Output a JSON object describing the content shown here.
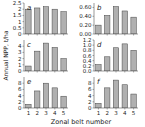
{
  "chart_data": [
    {
      "type": "bar",
      "title": "a",
      "categories": [
        "1",
        "2",
        "3",
        "4",
        "5"
      ],
      "values": [
        2.0,
        2.1,
        2.2,
        2.0,
        1.8
      ],
      "color": "#b0b0b0",
      "ylim": [
        0,
        2.5
      ],
      "yticks": [
        0,
        0.5,
        1,
        1.5,
        2,
        2.5
      ],
      "tick_labels": "y"
    },
    {
      "type": "bar",
      "title": "b",
      "categories": [
        "1",
        "2",
        "3",
        "4",
        "5"
      ],
      "values": [
        0.2,
        0.42,
        0.62,
        0.52,
        0.38
      ],
      "color": "#b0b0b0",
      "ylim": [
        0,
        0.7
      ],
      "yticks": [
        {
          "value": 0.0,
          "label": "0.00"
        },
        {
          "value": 0.2,
          "label": "0.20"
        },
        {
          "value": 0.4,
          "label": "0.40"
        },
        {
          "value": 0.6,
          "label": "0.60"
        }
      ],
      "tick_labels": "y"
    },
    {
      "type": "bar",
      "title": "c",
      "ylabel": "Annual NPP, t/ha",
      "categories": [
        "1",
        "2",
        "3",
        "4",
        "5"
      ],
      "values": [
        0.8,
        3.2,
        4.5,
        3.8,
        2.0
      ],
      "color": "#b0b0b0",
      "ylim": [
        0,
        5
      ],
      "yticks": [
        0,
        1,
        2,
        3,
        4
      ],
      "tick_labels": "y"
    },
    {
      "type": "bar",
      "title": "d",
      "categories": [
        "1",
        "2",
        "3",
        "4",
        "5"
      ],
      "values": [
        0.25,
        0.55,
        0.9,
        1.05,
        0.8
      ],
      "color": "#b0b0b0",
      "ylim": [
        0,
        1.2
      ],
      "yticks": [
        {
          "value": 0.0,
          "label": "0.0"
        },
        0.2,
        0.4,
        0.6,
        0.8,
        {
          "value": 1.0,
          "label": "1.0"
        },
        1.2
      ],
      "tick_labels": "y"
    },
    {
      "type": "bar",
      "title": "e",
      "xlabel": "Zonal belt number",
      "categories": [
        "1",
        "2",
        "3",
        "4",
        "5"
      ],
      "values": [
        1.2,
        5.5,
        8.0,
        6.5,
        3.8
      ],
      "color": "#b0b0b0",
      "ylim": [
        0,
        10
      ],
      "yticks": [
        0,
        2,
        4,
        6,
        8
      ]
    },
    {
      "type": "bar",
      "title": "f",
      "categories": [
        "1",
        "2",
        "3",
        "4",
        "5"
      ],
      "values": [
        1.5,
        6.5,
        9.0,
        7.5,
        4.5
      ],
      "color": "#b0b0b0",
      "ylim": [
        0,
        10
      ],
      "yticks": [
        0,
        2,
        4,
        6,
        8
      ]
    }
  ]
}
